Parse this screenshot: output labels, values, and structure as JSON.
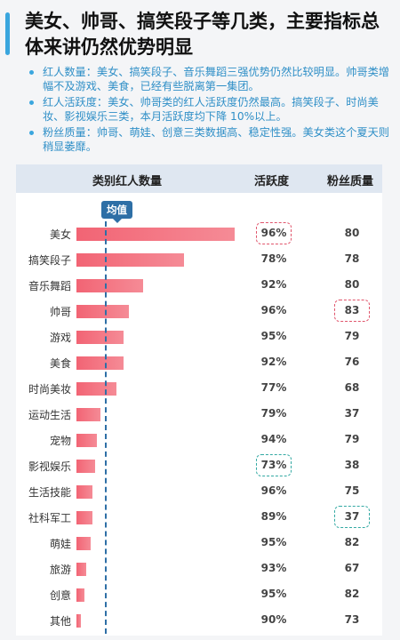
{
  "title": "美女、帅哥、搞笑段子等几类，主要指标总体来讲仍然优势明显",
  "bullets": [
    "红人数量：美女、搞笑段子、音乐舞蹈三强优势仍然比较明显。帅哥类增幅不及游戏、美食，已经有些脱离第一集团。",
    "红人活跃度：美女、帅哥类的红人活跃度仍然最高。搞笑段子、时尚美妆、影视娱乐三类，本月活跃度均下降 10%以上。",
    "粉丝质量：帅哥、萌娃、创意三类数据高、稳定性强。美女类这个夏天则稍显萎靡。"
  ],
  "colors": {
    "accent": "#3aa6de",
    "bar": "#f26474",
    "avg": "#2e6fa6",
    "highlight_red": "#e0546b",
    "highlight_teal": "#33a9a3"
  },
  "chart_data": {
    "type": "table",
    "columns": [
      "类别红人数量",
      "活跃度",
      "粉丝质量"
    ],
    "average_label": "均值",
    "average_value": 18,
    "bar_max": 100,
    "categories": [
      "美女",
      "搞笑段子",
      "音乐舞蹈",
      "帅哥",
      "游戏",
      "美食",
      "时尚美妆",
      "运动生活",
      "宠物",
      "影视娱乐",
      "生活技能",
      "社科军工",
      "萌娃",
      "旅游",
      "创意",
      "其他"
    ],
    "count_values": [
      100,
      68,
      42,
      33,
      30,
      30,
      25,
      15,
      13,
      12,
      10,
      10,
      9,
      6,
      5,
      3
    ],
    "activity": [
      "96%",
      "78%",
      "92%",
      "96%",
      "95%",
      "92%",
      "77%",
      "79%",
      "94%",
      "73%",
      "96%",
      "89%",
      "95%",
      "93%",
      "95%",
      "90%"
    ],
    "fan_quality": [
      "80",
      "78",
      "80",
      "83",
      "79",
      "76",
      "68",
      "37",
      "79",
      "38",
      "75",
      "37",
      "82",
      "67",
      "82",
      "73"
    ],
    "highlights": [
      {
        "row": 0,
        "column": "活跃度",
        "color": "red"
      },
      {
        "row": 3,
        "column": "粉丝质量",
        "color": "red"
      },
      {
        "row": 9,
        "column": "活跃度",
        "color": "teal"
      },
      {
        "row": 11,
        "column": "粉丝质量",
        "color": "teal"
      }
    ]
  }
}
